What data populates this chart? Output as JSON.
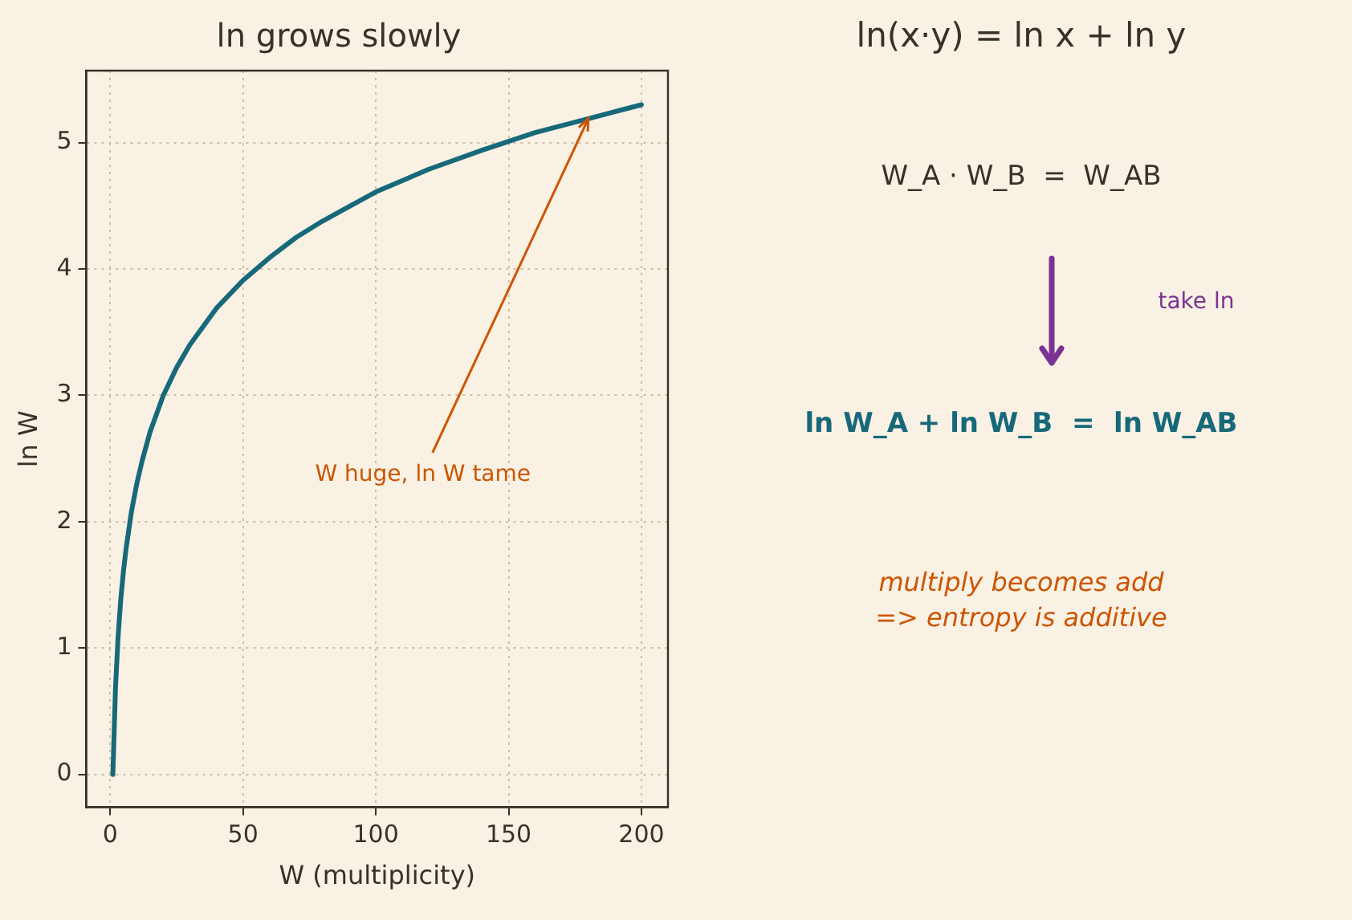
{
  "chart_data": [
    {
      "type": "line",
      "title": "ln grows slowly",
      "xlabel": "W (multiplicity)",
      "ylabel": "ln W",
      "x": [
        1,
        2,
        3,
        4,
        5,
        6,
        8,
        10,
        12,
        15,
        20,
        25,
        30,
        40,
        50,
        60,
        70,
        80,
        100,
        120,
        140,
        160,
        180,
        200
      ],
      "series": [
        {
          "color": "#17697a",
          "values": [
            0,
            0.69,
            1.1,
            1.39,
            1.61,
            1.79,
            2.08,
            2.3,
            2.48,
            2.71,
            3,
            3.22,
            3.4,
            3.69,
            3.91,
            4.09,
            4.25,
            4.38,
            4.61,
            4.79,
            4.94,
            5.08,
            5.19,
            5.3
          ]
        }
      ],
      "xlim": [
        -9,
        210
      ],
      "xticks": [
        0,
        50,
        100,
        150,
        200
      ],
      "ylim": [
        -0.26,
        5.57
      ],
      "yticks": [
        0,
        1,
        2,
        3,
        4,
        5
      ],
      "grid": true,
      "marker": "none",
      "line_style": "solid",
      "annotations": [
        {
          "text": "W huge, ln W tame",
          "x": 180,
          "y": 5.19
        }
      ]
    },
    {
      "type": "other",
      "title": "ln(x·y) = ln x + ln y",
      "annotations": [
        "W_A · W_B  =  W_AB",
        "take ln",
        "ln W_A + ln W_B  =  ln W_AB",
        "multiply becomes add\n=> entropy is additive"
      ]
    }
  ]
}
